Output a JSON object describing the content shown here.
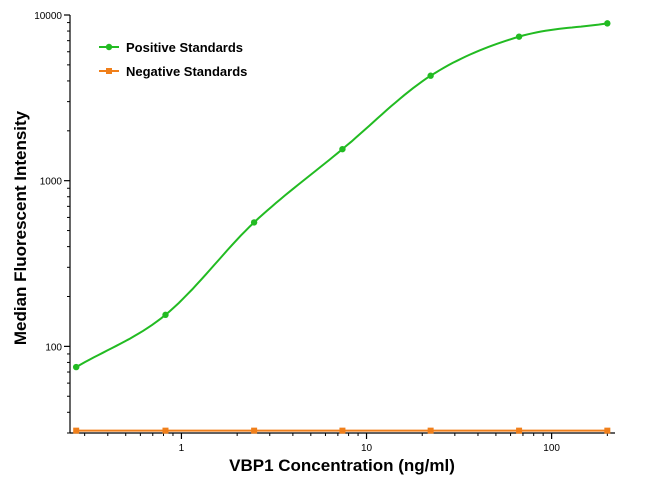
{
  "chart_data": {
    "type": "scatter",
    "xlabel": "VBP1 Concentration (ng/ml)",
    "ylabel": "Median Fluorescent Intensity",
    "x_scale": "log",
    "y_scale": "log",
    "xlim": [
      0.25,
      220
    ],
    "ylim": [
      30,
      10000
    ],
    "x_ticks": [
      1,
      10,
      100
    ],
    "x_tick_labels": [
      "1",
      "10",
      "100"
    ],
    "y_ticks": [
      100,
      1000,
      10000
    ],
    "y_tick_labels": [
      "100",
      "1000",
      "10000"
    ],
    "grid": false,
    "legend_position": "top-left",
    "series": [
      {
        "name": "Positive Standards",
        "color": "#22bb22",
        "marker": "circle",
        "fit_curve": true,
        "x": [
          0.27,
          0.82,
          2.47,
          7.41,
          22.2,
          66.7,
          200
        ],
        "y": [
          75,
          155,
          560,
          1550,
          4300,
          7400,
          8900
        ]
      },
      {
        "name": "Negative Standards",
        "color": "#f07f1a",
        "marker": "square",
        "fit_curve": false,
        "x": [
          0.27,
          0.82,
          2.47,
          7.41,
          22.2,
          66.7,
          200
        ],
        "y": [
          31,
          31,
          31,
          31,
          31,
          31,
          31
        ]
      }
    ]
  }
}
